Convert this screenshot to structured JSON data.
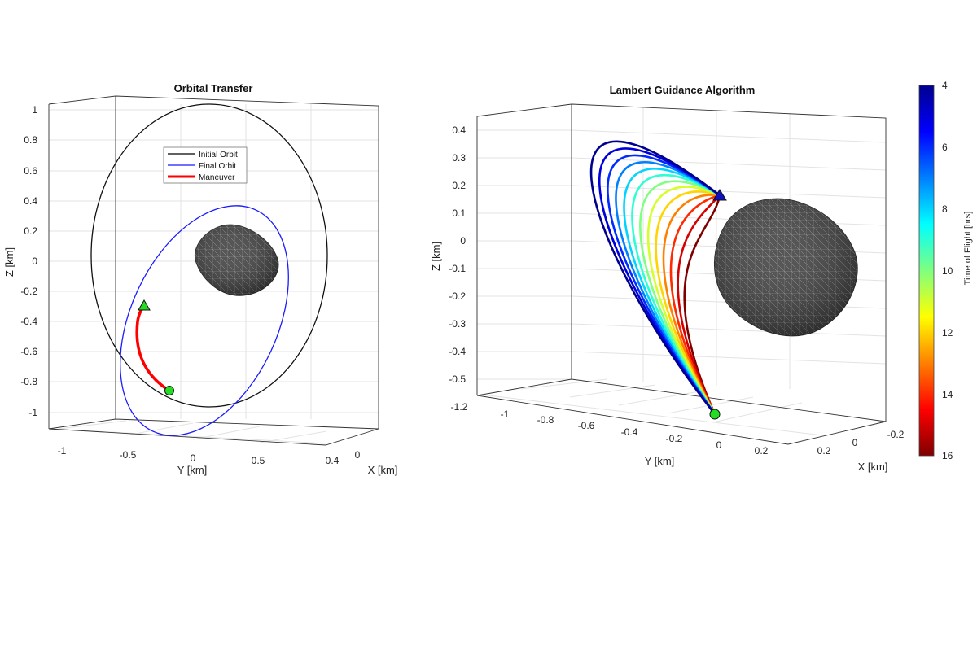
{
  "chart_data": [
    {
      "type": "line",
      "title": "Orbital Transfer",
      "xlabel": "X [km]",
      "ylabel": "Y [km]",
      "zlabel": "Z [km]",
      "view": "3d",
      "grid": true,
      "z_ticks": [
        "1",
        "0.8",
        "0.6",
        "0.4",
        "0.2",
        "0",
        "-0.2",
        "-0.4",
        "-0.6",
        "-0.8",
        "-1"
      ],
      "y_ticks": [
        "-1",
        "-0.5",
        "0",
        "0.5"
      ],
      "x_ticks": [
        "0.4",
        "0"
      ],
      "legend": {
        "placement": "top-center",
        "entries": [
          {
            "label": "Initial Orbit",
            "color": "#000000"
          },
          {
            "label": "Final Orbit",
            "color": "#1a1aff"
          },
          {
            "label": "Maneuver",
            "color": "#ff0000"
          }
        ]
      },
      "markers": [
        {
          "name": "start",
          "shape": "circle",
          "color": "#22dd22"
        },
        {
          "name": "end",
          "shape": "triangle",
          "color": "#22dd22"
        }
      ],
      "body": "asteroid"
    },
    {
      "type": "line",
      "title": "Lambert Guidance Algorithm",
      "xlabel": "X [km]",
      "ylabel": "Y [km]",
      "zlabel": "Z [km]",
      "view": "3d",
      "grid": true,
      "z_ticks": [
        "0.4",
        "0.3",
        "0.2",
        "0.1",
        "0",
        "-0.1",
        "-0.2",
        "-0.3",
        "-0.4",
        "-0.5"
      ],
      "y_ticks": [
        "-1.2",
        "-1",
        "-0.8",
        "-0.6",
        "-0.4",
        "-0.2",
        "0",
        "0.2"
      ],
      "x_ticks": [
        "0.2",
        "0",
        "-0.2"
      ],
      "colorbar": {
        "label": "Time of Flight [hrs]",
        "colormap": "jet",
        "range": [
          4,
          16
        ],
        "ticks": [
          "4",
          "6",
          "8",
          "10",
          "12",
          "14",
          "16"
        ]
      },
      "series_time_of_flight_hrs": [
        4,
        5,
        6,
        7,
        8,
        9,
        10,
        11,
        12,
        13,
        14,
        15,
        16
      ],
      "markers": [
        {
          "name": "start",
          "shape": "circle",
          "color": "#22dd22"
        },
        {
          "name": "target",
          "shape": "triangle",
          "color": "#1010c0"
        }
      ],
      "body": "asteroid"
    }
  ]
}
